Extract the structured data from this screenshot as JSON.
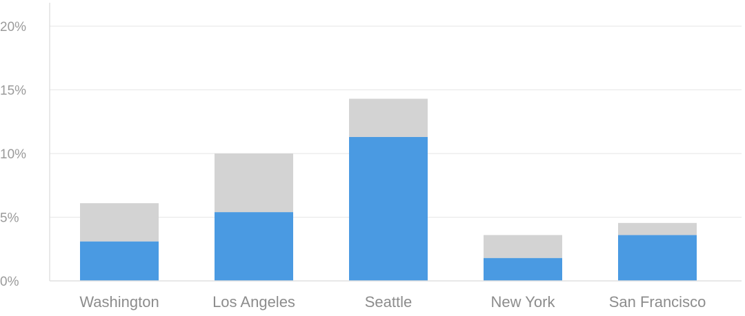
{
  "chart_data": {
    "type": "bar",
    "stacked": true,
    "categories": [
      "Washington",
      "Los Angeles",
      "Seattle",
      "New York",
      "San Francisco"
    ],
    "series": [
      {
        "values": [
          3.1,
          5.4,
          11.3,
          1.8,
          3.6
        ],
        "color": "#4a9ae2"
      },
      {
        "values": [
          3.0,
          4.6,
          3.0,
          1.8,
          0.95
        ],
        "color": "#d3d3d3"
      }
    ],
    "ylim": [
      0,
      20
    ],
    "yticks": [
      0,
      5,
      10,
      15,
      20
    ],
    "ytick_labels": [
      "0%",
      "5%",
      "10%",
      "15%",
      "20%"
    ],
    "grid": true,
    "legend": "none",
    "title": "",
    "xlabel": "",
    "ylabel": ""
  }
}
